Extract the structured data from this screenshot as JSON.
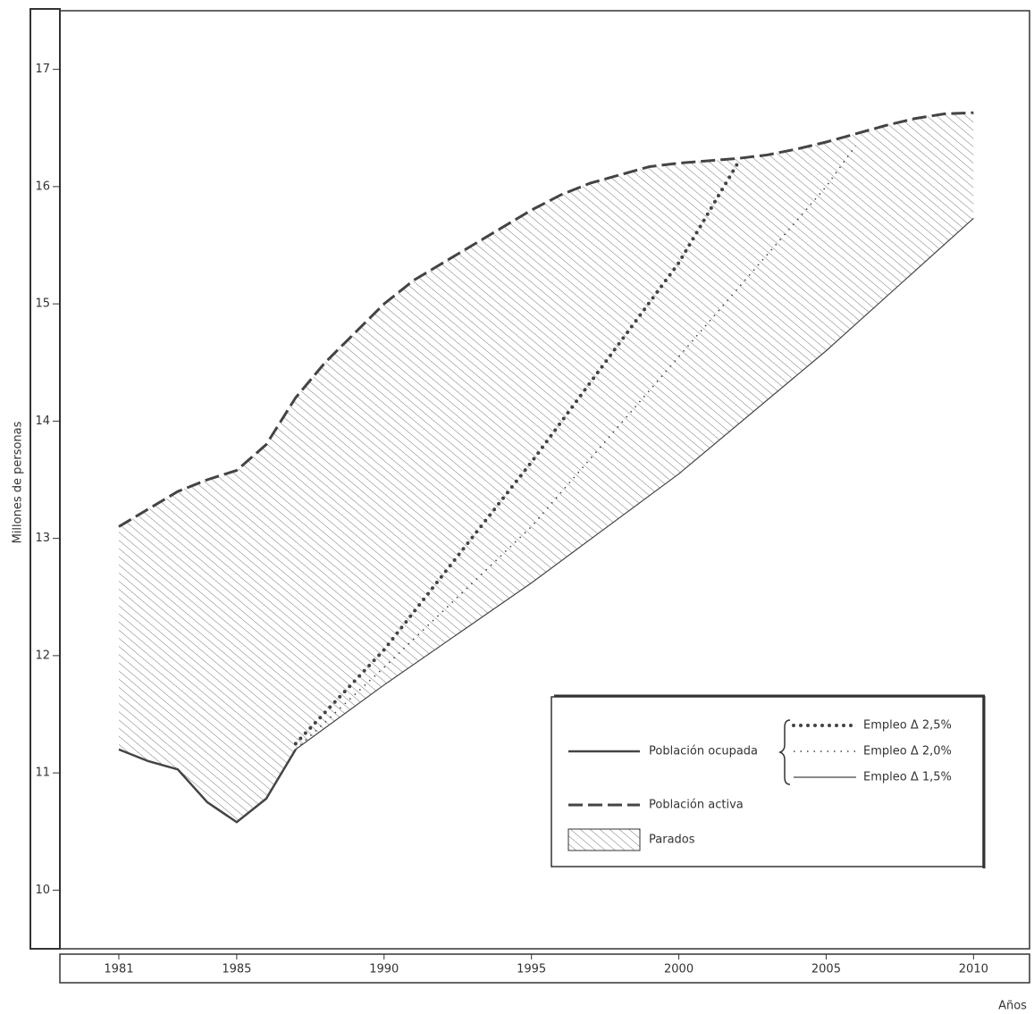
{
  "chart_data": {
    "type": "line",
    "y_label": "Millones de personas",
    "x_label": "Años",
    "xlim": [
      1979,
      2011.9
    ],
    "ylim": [
      9.5,
      17.5
    ],
    "xticks": [
      1981,
      1985,
      1990,
      1995,
      2000,
      2005,
      2010
    ],
    "yticks": [
      10,
      11,
      12,
      13,
      14,
      15,
      16,
      17
    ],
    "legend_group": "Población ocupada",
    "area_label": "Parados",
    "area_top_series": 4,
    "area_bottom_series": [
      0,
      3
    ],
    "series": [
      {
        "name": "Población ocupada",
        "color": "#444444",
        "style": "solid",
        "x": [
          1981,
          1982,
          1983,
          1984,
          1985,
          1986,
          1987
        ],
        "values": [
          11.2,
          11.1,
          11.03,
          10.75,
          10.58,
          10.78,
          11.2
        ]
      },
      {
        "name": "Empleo Δ 2,5%",
        "color": "#444444",
        "style": "bigdot",
        "x": [
          1987,
          1990,
          1995,
          2000,
          2002
        ],
        "values": [
          11.25,
          12.05,
          13.65,
          15.35,
          16.2
        ]
      },
      {
        "name": "Empleo Δ 2,0%",
        "color": "#444444",
        "style": "smalldot",
        "x": [
          1987,
          1990,
          1995,
          2000,
          2005,
          2006
        ],
        "values": [
          11.2,
          11.9,
          13.1,
          14.55,
          16.0,
          16.35
        ]
      },
      {
        "name": "Empleo Δ 1,5%",
        "color": "#444444",
        "style": "thin",
        "x": [
          1987,
          1990,
          1995,
          2000,
          2005,
          2010
        ],
        "values": [
          11.2,
          11.75,
          12.62,
          13.55,
          14.6,
          15.73
        ]
      },
      {
        "name": "Población activa",
        "color": "#444444",
        "style": "dashed",
        "x": [
          1981,
          1982,
          1983,
          1984,
          1985,
          1986,
          1987,
          1988,
          1989,
          1990,
          1991,
          1992,
          1993,
          1994,
          1995,
          1996,
          1997,
          1998,
          1999,
          2000,
          2001,
          2002,
          2003,
          2004,
          2005,
          2006,
          2007,
          2008,
          2009,
          2010
        ],
        "values": [
          13.1,
          13.25,
          13.4,
          13.5,
          13.58,
          13.8,
          14.2,
          14.5,
          14.75,
          15.0,
          15.2,
          15.35,
          15.5,
          15.65,
          15.8,
          15.93,
          16.03,
          16.1,
          16.17,
          16.2,
          16.22,
          16.24,
          16.27,
          16.32,
          16.38,
          16.45,
          16.52,
          16.58,
          16.62,
          16.63
        ]
      }
    ]
  }
}
